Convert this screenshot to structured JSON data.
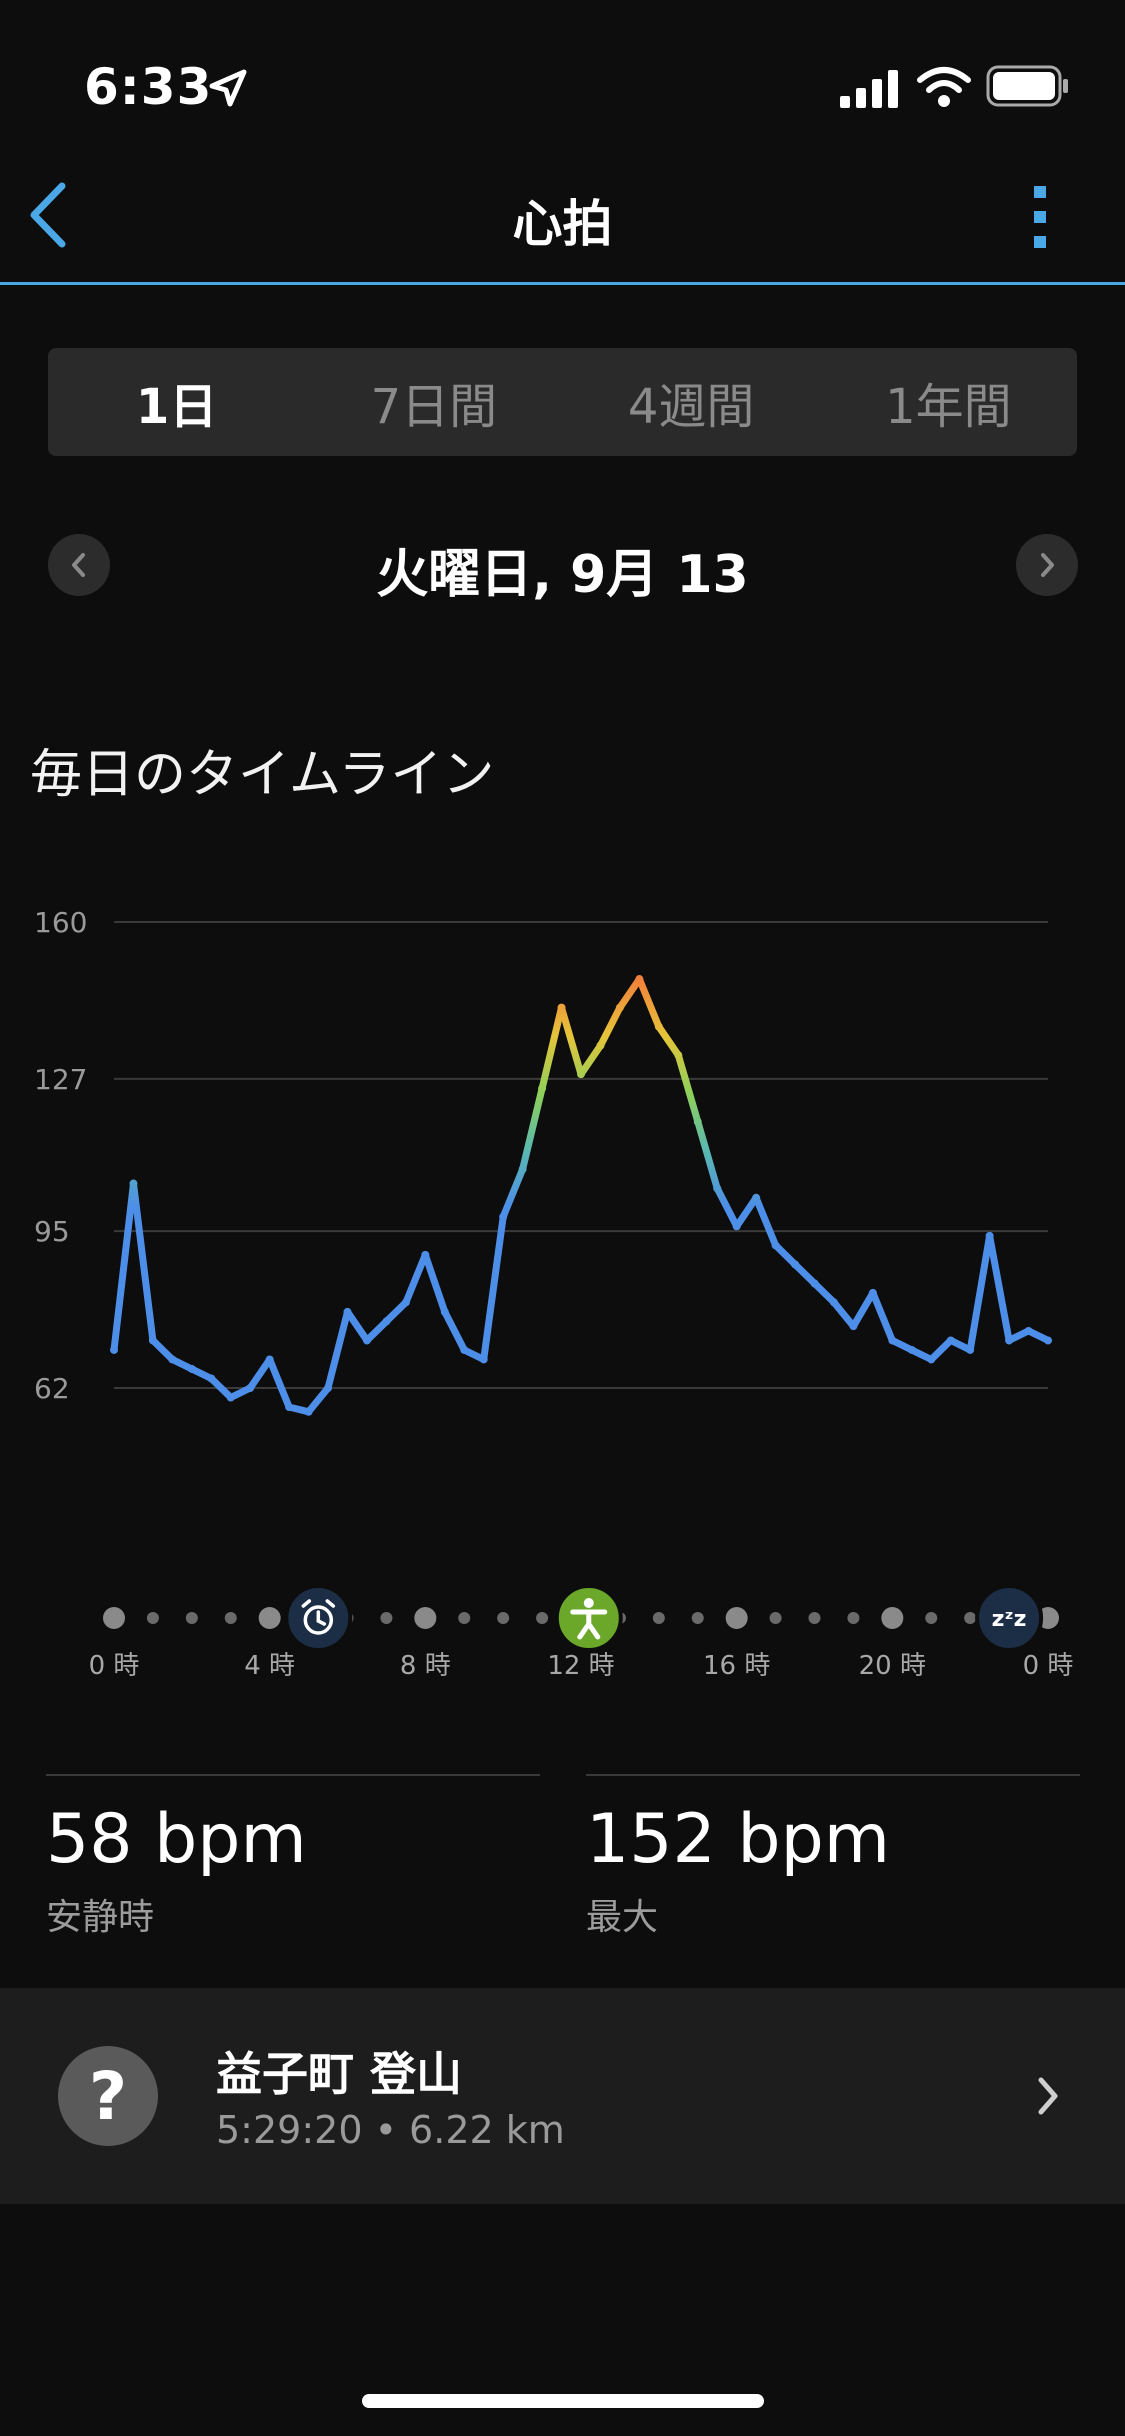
{
  "status_bar": {
    "time": "6:33"
  },
  "header": {
    "title": "心拍"
  },
  "tabs": [
    {
      "label": "1日",
      "active": true
    },
    {
      "label": "7日間",
      "active": false
    },
    {
      "label": "4週間",
      "active": false
    },
    {
      "label": "1年間",
      "active": false
    }
  ],
  "date_nav": {
    "date": "火曜日, 9月 13"
  },
  "section": {
    "title": "毎日のタイムライン"
  },
  "chart_data": {
    "type": "area",
    "y_ticks": [
      "160",
      "127",
      "95",
      "62"
    ],
    "ylim": [
      50,
      160
    ],
    "x_range_hours": [
      0,
      24
    ],
    "x_tick_labels": [
      "0 時",
      "4 時",
      "8 時",
      "12 時",
      "16 時",
      "20 時",
      "0 時"
    ],
    "x_hours": [
      0,
      0.5,
      1,
      1.5,
      2,
      2.5,
      3,
      3.5,
      4,
      4.5,
      5,
      5.5,
      6,
      6.5,
      7,
      7.5,
      8,
      8.5,
      9,
      9.5,
      10,
      10.5,
      11,
      11.5,
      12,
      12.5,
      13,
      13.5,
      14,
      14.5,
      15,
      15.5,
      16,
      16.5,
      17,
      17.5,
      18,
      18.5,
      19,
      19.5,
      20,
      20.5,
      21,
      21.5,
      22,
      22.5,
      23,
      23.5,
      24
    ],
    "values": [
      70,
      105,
      72,
      68,
      66,
      64,
      60,
      62,
      68,
      58,
      57,
      62,
      78,
      72,
      76,
      80,
      90,
      78,
      70,
      68,
      98,
      108,
      125,
      142,
      128,
      134,
      142,
      148,
      138,
      132,
      118,
      104,
      96,
      102,
      92,
      88,
      84,
      80,
      75,
      82,
      72,
      70,
      68,
      72,
      70,
      94,
      72,
      74,
      72
    ],
    "markers": [
      {
        "hour": 5.25,
        "icon": "alarm-clock-icon"
      },
      {
        "hour": 12.2,
        "icon": "activity-person-icon"
      },
      {
        "hour": 23.0,
        "icon": "sleep-zzz-icon"
      }
    ]
  },
  "stats": {
    "resting": {
      "value": "58 bpm",
      "label": "安静時"
    },
    "max": {
      "value": "152 bpm",
      "label": "最大"
    }
  },
  "activity": {
    "title": "益子町 登山",
    "subtitle": "5:29:20 • 6.22 km"
  }
}
